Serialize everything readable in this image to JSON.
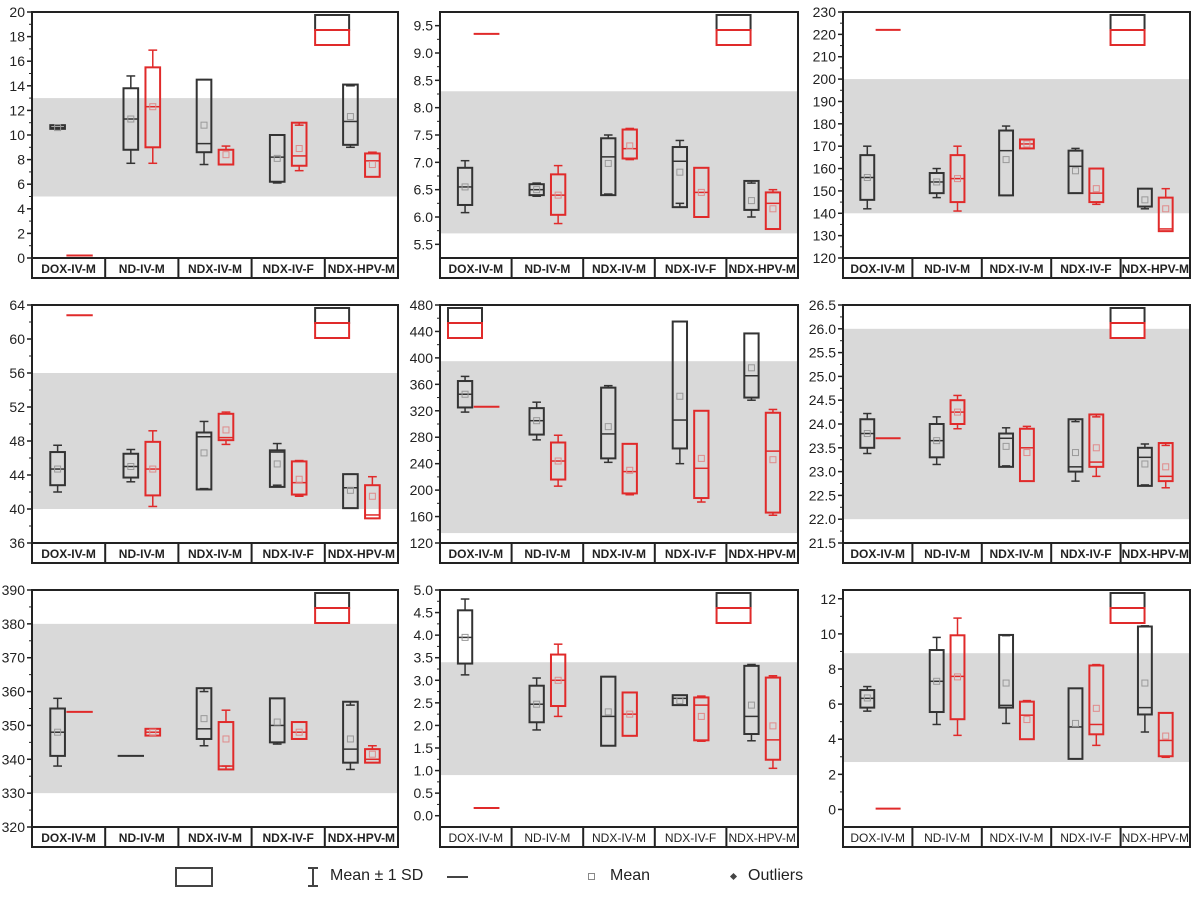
{
  "chart_data": {
    "type": "box",
    "layout": "3x3 grid",
    "categories": [
      "DOX-IV-M",
      "ND-IV-M",
      "NDX-IV-M",
      "NDX-IV-F",
      "NDX-HPV-M"
    ],
    "box_fields": [
      "whisker_low",
      "q1",
      "median",
      "q3",
      "whisker_high",
      "mean"
    ],
    "colors": {
      "series_a": "#333333",
      "series_b": "#e02a2a",
      "reference_band": "#d9d9d9",
      "mean_marker": "#999999"
    },
    "legend": {
      "sd_label": "Mean ± 1 SD",
      "mean_label": "Mean",
      "outliers_label": "Outliers"
    },
    "panels": [
      {
        "ylim": [
          0,
          20
        ],
        "yticks": [
          "0",
          "2",
          "4",
          "6",
          "8",
          "10",
          "12",
          "14",
          "16",
          "18",
          "20"
        ],
        "tick_values": [
          0,
          2,
          4,
          6,
          8,
          10,
          12,
          14,
          16,
          18,
          20
        ],
        "band": [
          5,
          13
        ],
        "inset_legend": "top-right",
        "category_font": "bold",
        "black": [
          [
            10.5,
            10.5,
            10.6,
            10.8,
            10.8,
            10.6
          ],
          [
            7.7,
            8.8,
            11.3,
            13.8,
            14.8,
            11.3
          ],
          [
            7.6,
            8.6,
            9.3,
            14.5,
            14.5,
            10.8
          ],
          [
            6.1,
            6.2,
            8.2,
            10,
            10,
            8.1
          ],
          [
            9,
            9.2,
            11.1,
            14.1,
            14,
            11.5
          ]
        ],
        "red": [
          [
            0.2,
            0.2,
            0.2,
            0.2,
            0.2,
            0.2
          ],
          [
            7.7,
            9,
            12.3,
            15.5,
            16.9,
            12.3
          ],
          [
            7.6,
            7.6,
            8.8,
            8.8,
            9.1,
            8.4
          ],
          [
            7.1,
            7.5,
            8.3,
            11,
            10.8,
            8.9
          ],
          [
            6.6,
            6.6,
            7.9,
            8.5,
            8.6,
            7.6
          ]
        ]
      },
      {
        "ylim": [
          5.25,
          9.75
        ],
        "yticks": [
          "5.5",
          "6.0",
          "6.5",
          "7.0",
          "7.5",
          "8.0",
          "8.5",
          "9.0",
          "9.5"
        ],
        "tick_values": [
          5.5,
          6,
          6.5,
          7,
          7.5,
          8,
          8.5,
          9,
          9.5
        ],
        "band": [
          5.7,
          8.3
        ],
        "inset_legend": "top-right",
        "category_font": "bold",
        "black": [
          [
            6.08,
            6.22,
            6.55,
            6.9,
            7.03,
            6.55
          ],
          [
            6.38,
            6.4,
            6.5,
            6.6,
            6.62,
            6.5
          ],
          [
            6.42,
            6.4,
            7.1,
            7.44,
            7.5,
            6.98
          ],
          [
            6.25,
            6.18,
            7.02,
            7.28,
            7.4,
            6.82
          ],
          [
            6.0,
            6.13,
            6.13,
            6.66,
            6.62,
            6.3
          ]
        ],
        "red": [
          [
            9.35,
            9.35,
            9.35,
            9.35,
            9.35,
            9.35
          ],
          [
            5.88,
            6.04,
            6.4,
            6.78,
            6.94,
            6.4
          ],
          [
            7.05,
            7.07,
            7.25,
            7.6,
            7.62,
            7.3
          ],
          [
            6.0,
            6.0,
            6.45,
            6.9,
            6.9,
            6.45
          ],
          [
            5.78,
            5.78,
            6.25,
            6.45,
            6.5,
            6.15
          ]
        ]
      },
      {
        "ylim": [
          120,
          230
        ],
        "yticks": [
          "120",
          "130",
          "140",
          "150",
          "160",
          "170",
          "180",
          "190",
          "200",
          "210",
          "220",
          "230"
        ],
        "tick_values": [
          120,
          130,
          140,
          150,
          160,
          170,
          180,
          190,
          200,
          210,
          220,
          230
        ],
        "band": [
          140,
          200
        ],
        "inset_legend": "top-right",
        "category_font": "bold",
        "black": [
          [
            142,
            146,
            156,
            166,
            170,
            156
          ],
          [
            147,
            149,
            154,
            158,
            160,
            154
          ],
          [
            148,
            148,
            168,
            177,
            179,
            164
          ],
          [
            149,
            149,
            161,
            168,
            169,
            159
          ],
          [
            142,
            143,
            143,
            151,
            151,
            146
          ]
        ],
        "red": [
          [
            222,
            222,
            222,
            222,
            222,
            222
          ],
          [
            141,
            145,
            155.5,
            166,
            170,
            155.5
          ],
          [
            169,
            169,
            171,
            173,
            173,
            171
          ],
          [
            144,
            145,
            149,
            160,
            160,
            151
          ],
          [
            132,
            132,
            133,
            147,
            151,
            142
          ]
        ]
      },
      {
        "ylim": [
          36,
          64
        ],
        "yticks": [
          "36",
          "40",
          "44",
          "48",
          "52",
          "56",
          "60",
          "64"
        ],
        "tick_values": [
          36,
          40,
          44,
          48,
          52,
          56,
          60,
          64
        ],
        "band": [
          40,
          56
        ],
        "inset_legend": "top-right",
        "category_font": "bold",
        "black": [
          [
            42,
            42.8,
            44.7,
            46.7,
            47.5,
            44.7
          ],
          [
            43.2,
            43.7,
            45,
            46.5,
            47,
            45
          ],
          [
            42.4,
            42.3,
            48.5,
            49,
            50.3,
            46.6
          ],
          [
            42.8,
            42.6,
            46.7,
            46.9,
            47.7,
            45.3
          ],
          [
            40.1,
            40.1,
            42.5,
            44.1,
            44.1,
            42.2
          ]
        ],
        "red": [
          [
            62.8,
            62.8,
            62.8,
            62.8,
            62.8,
            62.8
          ],
          [
            40.3,
            41.6,
            44.7,
            47.9,
            49.2,
            44.7
          ],
          [
            47.6,
            48.1,
            48.4,
            51.2,
            51.4,
            49.3
          ],
          [
            41.5,
            41.7,
            43.1,
            45.6,
            45.7,
            43.5
          ],
          [
            38.9,
            38.9,
            39.3,
            42.8,
            43.8,
            41.5
          ]
        ]
      },
      {
        "ylim": [
          120,
          480
        ],
        "yticks": [
          "120",
          "160",
          "200",
          "240",
          "280",
          "320",
          "360",
          "400",
          "440",
          "480"
        ],
        "tick_values": [
          120,
          160,
          200,
          240,
          280,
          320,
          360,
          400,
          440,
          480
        ],
        "band": [
          135,
          395
        ],
        "inset_legend": "top-left",
        "category_font": "bold",
        "black": [
          [
            318,
            325,
            345,
            365,
            372,
            345
          ],
          [
            276,
            284,
            305,
            324,
            333,
            305
          ],
          [
            242,
            248,
            285,
            355,
            358,
            296
          ],
          [
            240,
            263,
            306,
            455,
            455,
            342
          ],
          [
            336,
            340,
            373,
            437,
            437,
            385
          ]
        ],
        "red": [
          [
            326,
            326,
            326,
            326,
            326,
            326
          ],
          [
            206,
            216,
            244,
            272,
            283,
            244
          ],
          [
            193,
            195,
            228,
            270,
            270,
            230
          ],
          [
            182,
            188,
            233,
            320,
            320,
            248
          ],
          [
            162,
            166,
            259,
            317,
            322,
            246
          ]
        ]
      },
      {
        "ylim": [
          21.5,
          26.5
        ],
        "yticks": [
          "21.5",
          "22.0",
          "22.5",
          "23.0",
          "23.5",
          "24.0",
          "24.5",
          "25.0",
          "25.5",
          "26.0",
          "26.5"
        ],
        "tick_values": [
          21.5,
          22,
          22.5,
          23,
          23.5,
          24,
          24.5,
          25,
          25.5,
          26,
          26.5
        ],
        "band": [
          22,
          26
        ],
        "inset_legend": "top-right",
        "category_font": "bold",
        "black": [
          [
            23.38,
            23.5,
            23.8,
            24.1,
            24.22,
            23.8
          ],
          [
            23.15,
            23.3,
            23.65,
            24.0,
            24.15,
            23.65
          ],
          [
            23.12,
            23.1,
            23.7,
            23.8,
            23.92,
            23.53
          ],
          [
            22.8,
            23.0,
            23.1,
            24.1,
            24.05,
            23.4
          ],
          [
            22.72,
            22.7,
            23.3,
            23.5,
            23.58,
            23.16
          ]
        ],
        "red": [
          [
            23.7,
            23.7,
            23.7,
            23.7,
            23.7,
            23.7
          ],
          [
            23.9,
            24.0,
            24.25,
            24.5,
            24.6,
            24.25
          ],
          [
            22.8,
            22.8,
            23.5,
            23.9,
            23.95,
            23.4
          ],
          [
            22.9,
            23.1,
            23.2,
            24.2,
            24.15,
            23.5
          ],
          [
            22.66,
            22.8,
            22.9,
            23.6,
            23.55,
            23.1
          ]
        ]
      },
      {
        "ylim": [
          320,
          390
        ],
        "yticks": [
          "320",
          "330",
          "340",
          "350",
          "360",
          "370",
          "380",
          "390"
        ],
        "tick_values": [
          320,
          330,
          340,
          350,
          360,
          370,
          380,
          390
        ],
        "band": [
          330,
          380
        ],
        "inset_legend": "top-right",
        "category_font": "bold",
        "black": [
          [
            338,
            341,
            348,
            355,
            358,
            348
          ],
          [
            341,
            341,
            341,
            341,
            341,
            341
          ],
          [
            344,
            346,
            349,
            361,
            360,
            352
          ],
          [
            344.5,
            345,
            350,
            358,
            358,
            351
          ],
          [
            337,
            339,
            343,
            357,
            356,
            346
          ]
        ],
        "red": [
          [
            354,
            354,
            354,
            354,
            354,
            354
          ],
          [
            347,
            347,
            348,
            349,
            349,
            348
          ],
          [
            338,
            337,
            338,
            351,
            354.5,
            346
          ],
          [
            346,
            346,
            348,
            351,
            351,
            348
          ],
          [
            339,
            339,
            340,
            343,
            344,
            341.5
          ]
        ]
      },
      {
        "ylim": [
          -0.25,
          5
        ],
        "yticks": [
          "0.0",
          "0.5",
          "1.0",
          "1.5",
          "2.0",
          "2.5",
          "3.0",
          "3.5",
          "4.0",
          "4.5",
          "5.0"
        ],
        "tick_values": [
          0,
          0.5,
          1,
          1.5,
          2,
          2.5,
          3,
          3.5,
          4,
          4.5,
          5
        ],
        "band": [
          0.9,
          3.4
        ],
        "inset_legend": "top-right",
        "category_font": "normal",
        "black": [
          [
            3.12,
            3.37,
            3.95,
            4.55,
            4.8,
            3.95
          ],
          [
            1.9,
            2.07,
            2.47,
            2.88,
            3.05,
            2.47
          ],
          [
            1.55,
            1.55,
            2.2,
            3.08,
            3.08,
            2.3
          ],
          [
            2.45,
            2.45,
            2.6,
            2.67,
            2.67,
            2.55
          ],
          [
            1.66,
            1.81,
            2.2,
            3.32,
            3.35,
            2.45
          ]
        ],
        "red": [
          [
            0.17,
            0.17,
            0.17,
            0.17,
            0.17,
            0.17
          ],
          [
            2.2,
            2.43,
            3.0,
            3.57,
            3.8,
            3.0
          ],
          [
            1.77,
            1.77,
            2.25,
            2.73,
            2.73,
            2.25
          ],
          [
            1.65,
            1.67,
            2.45,
            2.62,
            2.65,
            2.2
          ],
          [
            1.05,
            1.24,
            1.68,
            3.06,
            3.1,
            1.99
          ]
        ]
      },
      {
        "ylim": [
          -1,
          12.5
        ],
        "yticks": [
          "0",
          "2",
          "4",
          "6",
          "8",
          "10",
          "12"
        ],
        "tick_values": [
          0,
          2,
          4,
          6,
          8,
          10,
          12
        ],
        "band": [
          2.7,
          8.9
        ],
        "inset_legend": "top-right",
        "category_font": "normal",
        "black": [
          [
            5.6,
            5.8,
            6.33,
            6.8,
            7.0,
            6.35
          ],
          [
            4.84,
            5.55,
            7.3,
            9.08,
            9.8,
            7.3
          ],
          [
            4.9,
            5.8,
            5.93,
            9.94,
            9.9,
            7.2
          ],
          [
            2.88,
            2.88,
            4.7,
            6.9,
            6.9,
            4.9
          ],
          [
            4.41,
            5.41,
            5.8,
            10.42,
            10.46,
            7.2
          ]
        ],
        "red": [
          [
            0.05,
            0.05,
            0.05,
            0.05,
            0.05,
            0.05
          ],
          [
            4.22,
            5.14,
            7.58,
            9.92,
            10.9,
            7.55
          ],
          [
            4.0,
            4.0,
            5.37,
            6.14,
            6.2,
            5.12
          ],
          [
            3.65,
            4.28,
            4.84,
            8.2,
            8.25,
            5.76
          ],
          [
            2.97,
            3.03,
            3.93,
            5.5,
            5.5,
            4.18
          ]
        ]
      }
    ]
  }
}
